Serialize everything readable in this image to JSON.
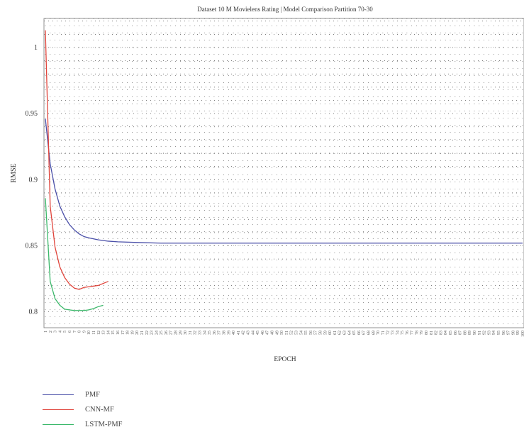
{
  "chart_data": {
    "type": "line",
    "title": "Dataset 10 M Movielens Rating | Model Comparison Partition 70-30",
    "xlabel": "EPOCH",
    "ylabel": "RMSE",
    "x_min": 1,
    "x_max": 100,
    "ylim": [
      0.788,
      1.022
    ],
    "y_ticks": [
      0.8,
      0.85,
      0.9,
      0.95,
      1
    ],
    "y_tick_labels": [
      "0.8",
      "0.85",
      "0.9",
      "0.95",
      "1"
    ],
    "grid": true,
    "legend_position": "bottom-left",
    "series": [
      {
        "name": "PMF",
        "color": "#4a4fa8",
        "points": [
          [
            1,
            0.946
          ],
          [
            2,
            0.912
          ],
          [
            3,
            0.893
          ],
          [
            4,
            0.88
          ],
          [
            5,
            0.872
          ],
          [
            6,
            0.866
          ],
          [
            7,
            0.862
          ],
          [
            8,
            0.859
          ],
          [
            9,
            0.857
          ],
          [
            10,
            0.856
          ],
          [
            12,
            0.8545
          ],
          [
            14,
            0.8535
          ],
          [
            16,
            0.853
          ],
          [
            20,
            0.8525
          ],
          [
            25,
            0.852
          ],
          [
            40,
            0.852
          ],
          [
            60,
            0.852
          ],
          [
            80,
            0.852
          ],
          [
            100,
            0.852
          ]
        ]
      },
      {
        "name": "CNN-MF",
        "color": "#e0443b",
        "points": [
          [
            1,
            1.013
          ],
          [
            2,
            0.88
          ],
          [
            3,
            0.849
          ],
          [
            4,
            0.834
          ],
          [
            5,
            0.826
          ],
          [
            6,
            0.821
          ],
          [
            7,
            0.818
          ],
          [
            8,
            0.817
          ],
          [
            9,
            0.8185
          ],
          [
            10,
            0.819
          ],
          [
            11,
            0.8195
          ],
          [
            12,
            0.82
          ],
          [
            13,
            0.8215
          ],
          [
            14,
            0.823
          ]
        ]
      },
      {
        "name": "LSTM-PMF",
        "color": "#3bb86a",
        "points": [
          [
            1,
            0.886
          ],
          [
            2,
            0.823
          ],
          [
            3,
            0.81
          ],
          [
            4,
            0.805
          ],
          [
            5,
            0.802
          ],
          [
            6,
            0.8015
          ],
          [
            7,
            0.801
          ],
          [
            8,
            0.801
          ],
          [
            9,
            0.801
          ],
          [
            10,
            0.8015
          ],
          [
            11,
            0.8025
          ],
          [
            12,
            0.804
          ],
          [
            13,
            0.805
          ]
        ]
      }
    ]
  }
}
